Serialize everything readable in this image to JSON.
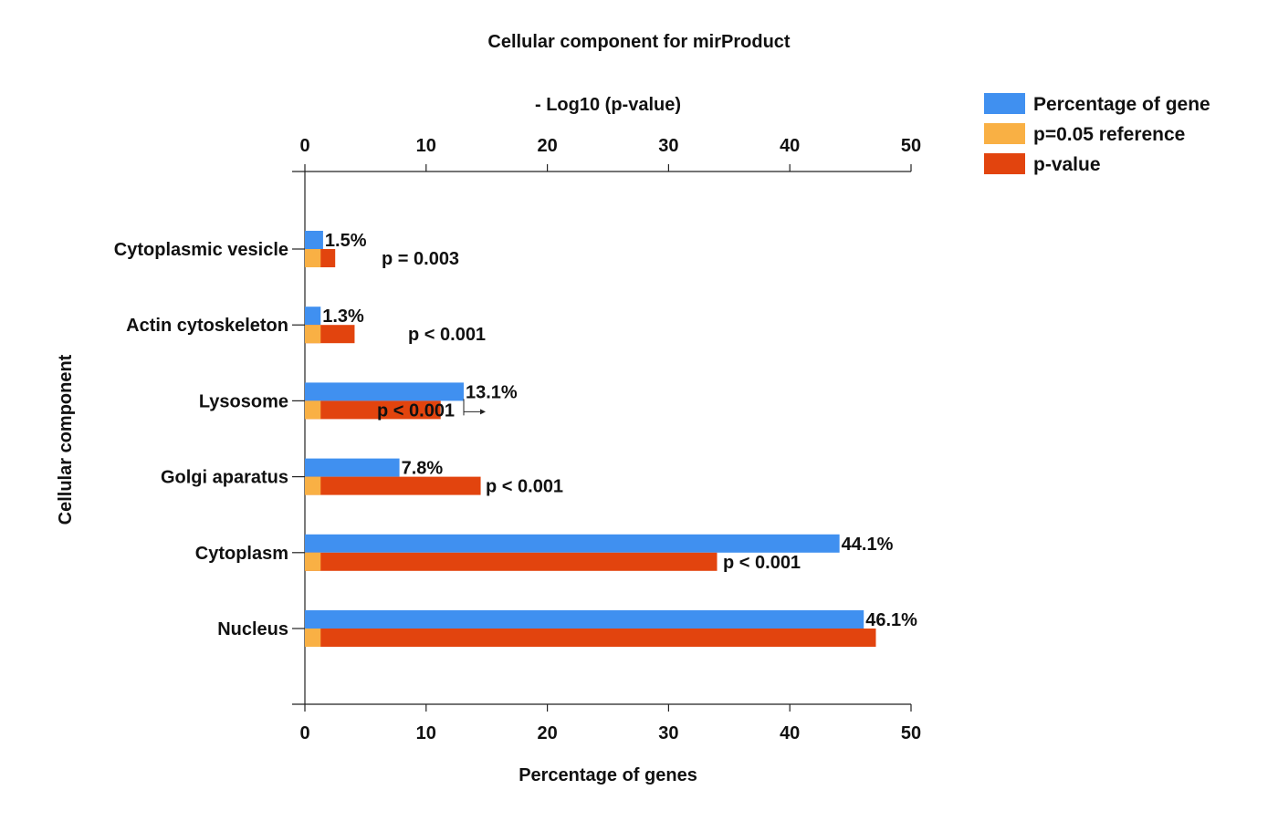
{
  "chart_data": {
    "type": "bar",
    "orientation": "horizontal",
    "title": "Cellular component for mirProduct",
    "xlabel_top": "- Log10 (p-value)",
    "xlabel_bottom": "Percentage of genes",
    "ylabel": "Cellular component",
    "xlim": [
      0,
      50
    ],
    "ticks": [
      "0",
      "10",
      "20",
      "30",
      "40",
      "50"
    ],
    "categories": [
      "Cytoplasmic vesicle",
      "Actin cytoskeleton",
      "Lysosome",
      "Golgi aparatus",
      "Cytoplasm",
      "Nucleus"
    ],
    "series": [
      {
        "name": "Percentage of gene",
        "color": "#4090F0",
        "values": [
          1.5,
          1.3,
          13.1,
          7.8,
          44.1,
          46.1
        ]
      },
      {
        "name": "p=0.05 reference",
        "color": "#F9B044",
        "values": [
          1.3,
          1.3,
          1.3,
          1.3,
          1.3,
          1.3
        ]
      },
      {
        "name": "p-value",
        "color": "#E2440E",
        "values": [
          2.5,
          4.1,
          11.2,
          14.5,
          34.0,
          47.1
        ]
      }
    ],
    "data_labels": [
      "1.5%",
      "1.3%",
      "13.1%",
      "7.8%",
      "44.1%",
      "46.1%"
    ],
    "pvalue_labels": [
      "p = 0.003",
      "p < 0.001",
      "p < 0.001",
      "p < 0.001",
      "p < 0.001",
      ""
    ],
    "legend_position": "top-right",
    "grid": false
  }
}
